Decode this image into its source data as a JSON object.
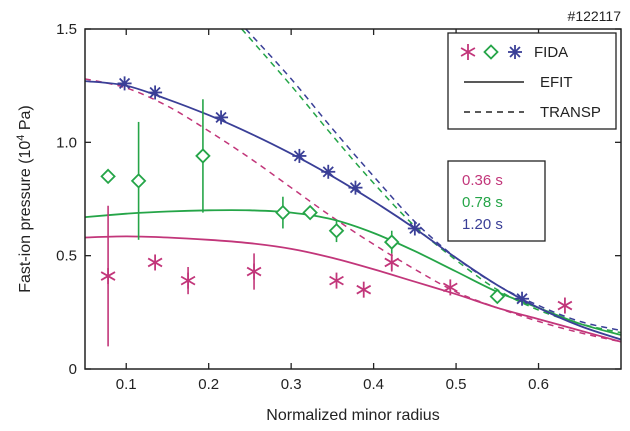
{
  "chart_data": {
    "type": "scatter",
    "shot": "#122117",
    "xlabel": "Normalized minor radius",
    "ylabel": "Fast-ion pressure (10⁴ Pa)",
    "xlim": [
      0.05,
      0.7
    ],
    "ylim": [
      0,
      1.5
    ],
    "x_ticks": [
      0.1,
      0.2,
      0.3,
      0.4,
      0.5,
      0.6
    ],
    "y_ticks": [
      0,
      0.5,
      1.0,
      1.5
    ],
    "x_tick_labels": [
      "0.1",
      "0.2",
      "0.3",
      "0.4",
      "0.5",
      "0.6"
    ],
    "y_tick_labels": [
      "0",
      "0.5",
      "1.0",
      "1.5"
    ],
    "legend": {
      "placement": "top-right",
      "entries": [
        {
          "label": "FIDA",
          "kind": "markers"
        },
        {
          "label": "EFIT",
          "kind": "solid-line"
        },
        {
          "label": "TRANSP",
          "kind": "dashed-line"
        }
      ]
    },
    "time_legend": [
      {
        "label": "0.36 s",
        "color": "#c2367a"
      },
      {
        "label": "0.78 s",
        "color": "#25a548"
      },
      {
        "label": "1.20 s",
        "color": "#3a3f97"
      }
    ],
    "series": [
      {
        "time": "0.36 s",
        "color": "#c2367a",
        "marker": "star6",
        "fida": [
          {
            "x": 0.078,
            "y": 0.41,
            "err": 0.31
          },
          {
            "x": 0.135,
            "y": 0.47,
            "err": 0
          },
          {
            "x": 0.175,
            "y": 0.39,
            "err": 0.06
          },
          {
            "x": 0.255,
            "y": 0.43,
            "err": 0.08
          },
          {
            "x": 0.355,
            "y": 0.39,
            "err": 0
          },
          {
            "x": 0.388,
            "y": 0.35,
            "err": 0
          },
          {
            "x": 0.422,
            "y": 0.47,
            "err": 0.04
          },
          {
            "x": 0.493,
            "y": 0.36,
            "err": 0
          },
          {
            "x": 0.632,
            "y": 0.28,
            "err": 0
          }
        ],
        "efit": [
          [
            0.05,
            0.58
          ],
          [
            0.1,
            0.585
          ],
          [
            0.15,
            0.58
          ],
          [
            0.2,
            0.57
          ],
          [
            0.25,
            0.555
          ],
          [
            0.3,
            0.53
          ],
          [
            0.35,
            0.49
          ],
          [
            0.4,
            0.44
          ],
          [
            0.45,
            0.385
          ],
          [
            0.5,
            0.33
          ],
          [
            0.55,
            0.27
          ],
          [
            0.6,
            0.22
          ],
          [
            0.65,
            0.17
          ],
          [
            0.7,
            0.12
          ]
        ],
        "transp": [
          [
            0.05,
            1.28
          ],
          [
            0.1,
            1.24
          ],
          [
            0.15,
            1.16
          ],
          [
            0.2,
            1.05
          ],
          [
            0.25,
            0.93
          ],
          [
            0.3,
            0.8
          ],
          [
            0.35,
            0.67
          ],
          [
            0.4,
            0.55
          ],
          [
            0.45,
            0.44
          ],
          [
            0.5,
            0.34
          ],
          [
            0.55,
            0.27
          ],
          [
            0.6,
            0.21
          ],
          [
            0.65,
            0.16
          ],
          [
            0.7,
            0.12
          ]
        ]
      },
      {
        "time": "0.78 s",
        "color": "#25a548",
        "marker": "diamond",
        "fida": [
          {
            "x": 0.078,
            "y": 0.85,
            "err": 0
          },
          {
            "x": 0.115,
            "y": 0.83,
            "err": 0.26
          },
          {
            "x": 0.193,
            "y": 0.94,
            "err": 0.25
          },
          {
            "x": 0.29,
            "y": 0.69,
            "err": 0.07
          },
          {
            "x": 0.323,
            "y": 0.69,
            "err": 0
          },
          {
            "x": 0.355,
            "y": 0.61,
            "err": 0.05
          },
          {
            "x": 0.422,
            "y": 0.56,
            "err": 0.05
          },
          {
            "x": 0.55,
            "y": 0.32,
            "err": 0
          }
        ],
        "efit": [
          [
            0.05,
            0.67
          ],
          [
            0.1,
            0.685
          ],
          [
            0.15,
            0.695
          ],
          [
            0.2,
            0.7
          ],
          [
            0.25,
            0.7
          ],
          [
            0.3,
            0.69
          ],
          [
            0.35,
            0.66
          ],
          [
            0.4,
            0.6
          ],
          [
            0.45,
            0.52
          ],
          [
            0.5,
            0.43
          ],
          [
            0.55,
            0.34
          ],
          [
            0.6,
            0.27
          ],
          [
            0.65,
            0.2
          ],
          [
            0.7,
            0.15
          ]
        ],
        "transp": [
          [
            0.24,
            1.5
          ],
          [
            0.3,
            1.25
          ],
          [
            0.35,
            1.03
          ],
          [
            0.4,
            0.82
          ],
          [
            0.45,
            0.63
          ],
          [
            0.5,
            0.48
          ],
          [
            0.55,
            0.35
          ],
          [
            0.6,
            0.26
          ],
          [
            0.65,
            0.2
          ],
          [
            0.7,
            0.16
          ]
        ]
      },
      {
        "time": "1.20 s",
        "color": "#3a3f97",
        "marker": "asterisk",
        "fida": [
          {
            "x": 0.098,
            "y": 1.26,
            "err": 0
          },
          {
            "x": 0.135,
            "y": 1.22,
            "err": 0
          },
          {
            "x": 0.215,
            "y": 1.11,
            "err": 0
          },
          {
            "x": 0.31,
            "y": 0.94,
            "err": 0
          },
          {
            "x": 0.345,
            "y": 0.87,
            "err": 0
          },
          {
            "x": 0.378,
            "y": 0.8,
            "err": 0
          },
          {
            "x": 0.45,
            "y": 0.62,
            "err": 0
          },
          {
            "x": 0.58,
            "y": 0.31,
            "err": 0
          }
        ],
        "efit": [
          [
            0.05,
            1.27
          ],
          [
            0.1,
            1.25
          ],
          [
            0.15,
            1.19
          ],
          [
            0.2,
            1.12
          ],
          [
            0.25,
            1.04
          ],
          [
            0.3,
            0.95
          ],
          [
            0.35,
            0.85
          ],
          [
            0.4,
            0.74
          ],
          [
            0.45,
            0.62
          ],
          [
            0.5,
            0.49
          ],
          [
            0.55,
            0.37
          ],
          [
            0.6,
            0.27
          ],
          [
            0.65,
            0.19
          ],
          [
            0.7,
            0.13
          ]
        ],
        "transp": [
          [
            0.245,
            1.5
          ],
          [
            0.3,
            1.28
          ],
          [
            0.35,
            1.06
          ],
          [
            0.4,
            0.85
          ],
          [
            0.45,
            0.65
          ],
          [
            0.5,
            0.49
          ],
          [
            0.55,
            0.37
          ],
          [
            0.6,
            0.28
          ],
          [
            0.65,
            0.21
          ],
          [
            0.7,
            0.17
          ]
        ]
      }
    ]
  }
}
